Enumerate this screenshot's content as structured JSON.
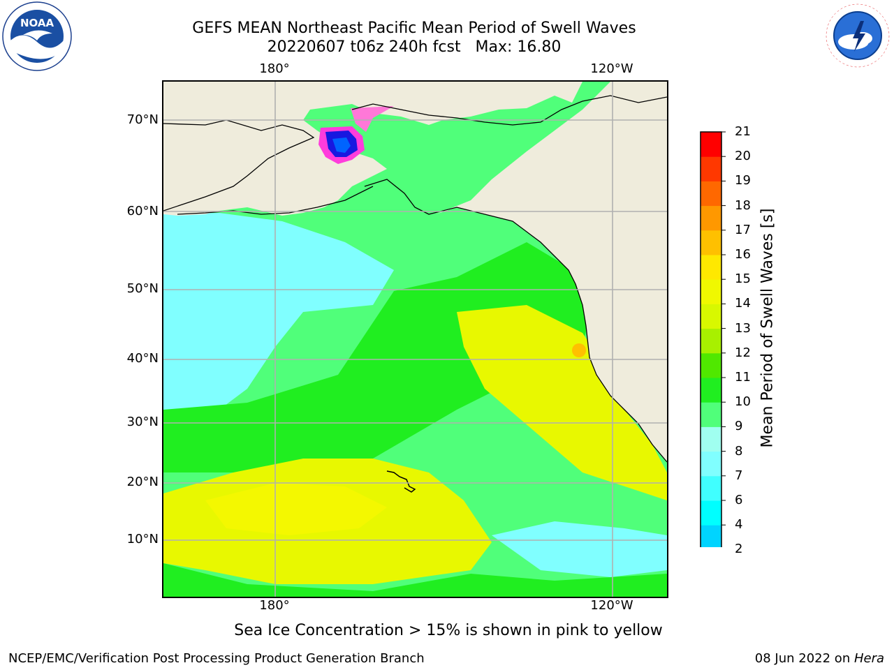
{
  "title": {
    "line1": "GEFS MEAN Northeast Pacific Mean Period of Swell Waves",
    "line2": "20220607 t06z 240h fcst   Max: 16.80"
  },
  "logos": {
    "left": "noaa-logo",
    "left_text": "NOAA",
    "right": "nws-logo",
    "right_text": "NATIONAL WEATHER SERVICE"
  },
  "map": {
    "lon_labels_top": [
      "180°",
      "120°W"
    ],
    "lon_labels_bottom": [
      "180°",
      "120°W"
    ],
    "lat_labels": [
      "70°N",
      "60°N",
      "50°N",
      "40°N",
      "30°N",
      "20°N",
      "10°N"
    ],
    "land_color": "#efecdc",
    "grid_color": "#b0b0b0"
  },
  "colorbar": {
    "label": "Mean Period of Swell Waves [s]",
    "ticks": [
      "21",
      "20",
      "19",
      "18",
      "17",
      "16",
      "15",
      "14",
      "13",
      "12",
      "11",
      "10",
      "9",
      "8",
      "7",
      "6",
      "4",
      "2"
    ],
    "colors_bottom_to_top": [
      "#0064ff",
      "#00d4ff",
      "#00ffff",
      "#40ffff",
      "#80ffff",
      "#a0fff0",
      "#50ff7a",
      "#20ee20",
      "#50e800",
      "#a8f000",
      "#d8f800",
      "#f0f800",
      "#ffe800",
      "#ffc000",
      "#ff9800",
      "#ff6800",
      "#ff3800",
      "#ff0000"
    ],
    "under_color": "#0000ff"
  },
  "footnote": "Sea Ice Concentration > 15% is shown in pink to yellow",
  "footer": {
    "left": "NCEP/EMC/Verification Post Processing Product Generation Branch",
    "right_prefix": "08 Jun 2022 on ",
    "right_italic": "Hera"
  }
}
